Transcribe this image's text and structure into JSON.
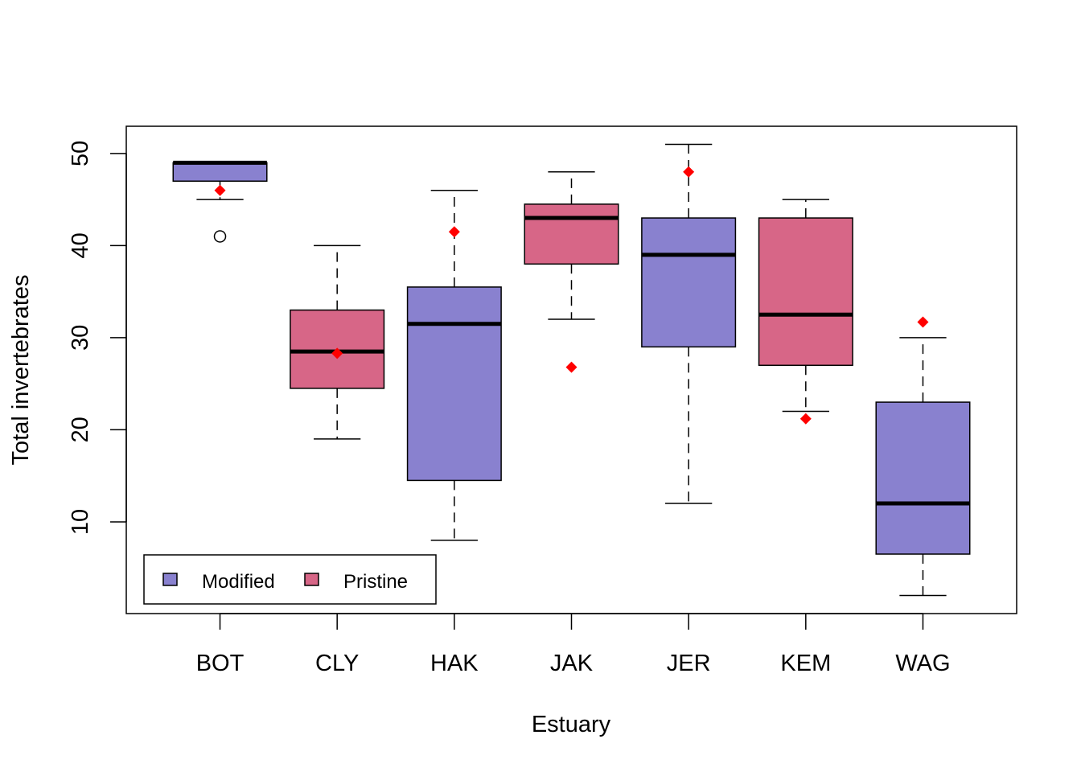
{
  "chart_data": {
    "type": "boxplot",
    "title": "",
    "xlabel": "Estuary",
    "ylabel": "Total invertebrates",
    "ylim": [
      0.04,
      52.96
    ],
    "yticks": [
      10,
      20,
      30,
      40,
      50
    ],
    "ytick_labels": [
      "10",
      "20",
      "30",
      "40",
      "50"
    ],
    "categories": [
      "BOT",
      "CLY",
      "HAK",
      "JAK",
      "JER",
      "KEM",
      "WAG"
    ],
    "grid": false,
    "legend": {
      "position": "bottom-left",
      "entries": [
        {
          "label": "Modified",
          "color": "#8981CF"
        },
        {
          "label": "Pristine",
          "color": "#D76687"
        }
      ]
    },
    "colors": {
      "Modified": "#8981CF",
      "Pristine": "#D76687",
      "mean_marker": "#FF0000"
    },
    "boxes": [
      {
        "category": "BOT",
        "group": "Modified",
        "whisker_low": 45,
        "q1": 47,
        "median": 49,
        "q3": 49,
        "whisker_high": 49,
        "outliers": [
          41
        ],
        "mean": 46
      },
      {
        "category": "CLY",
        "group": "Pristine",
        "whisker_low": 19,
        "q1": 24.5,
        "median": 28.5,
        "q3": 33,
        "whisker_high": 40,
        "outliers": [],
        "mean": 28.3
      },
      {
        "category": "HAK",
        "group": "Modified",
        "whisker_low": 8,
        "q1": 14.5,
        "median": 31.5,
        "q3": 35.5,
        "whisker_high": 46,
        "outliers": [],
        "mean": 41.5
      },
      {
        "category": "JAK",
        "group": "Pristine",
        "whisker_low": 32,
        "q1": 38,
        "median": 43,
        "q3": 44.5,
        "whisker_high": 48,
        "outliers": [],
        "mean": 26.8
      },
      {
        "category": "JER",
        "group": "Modified",
        "whisker_low": 12,
        "q1": 29,
        "median": 39,
        "q3": 43,
        "whisker_high": 51,
        "outliers": [],
        "mean": 48
      },
      {
        "category": "KEM",
        "group": "Pristine",
        "whisker_low": 22,
        "q1": 27,
        "median": 32.5,
        "q3": 43,
        "whisker_high": 45,
        "outliers": [],
        "mean": 21.2
      },
      {
        "category": "WAG",
        "group": "Modified",
        "whisker_low": 2,
        "q1": 6.5,
        "median": 12,
        "q3": 23,
        "whisker_high": 30,
        "outliers": [],
        "mean": 31.7
      }
    ]
  }
}
